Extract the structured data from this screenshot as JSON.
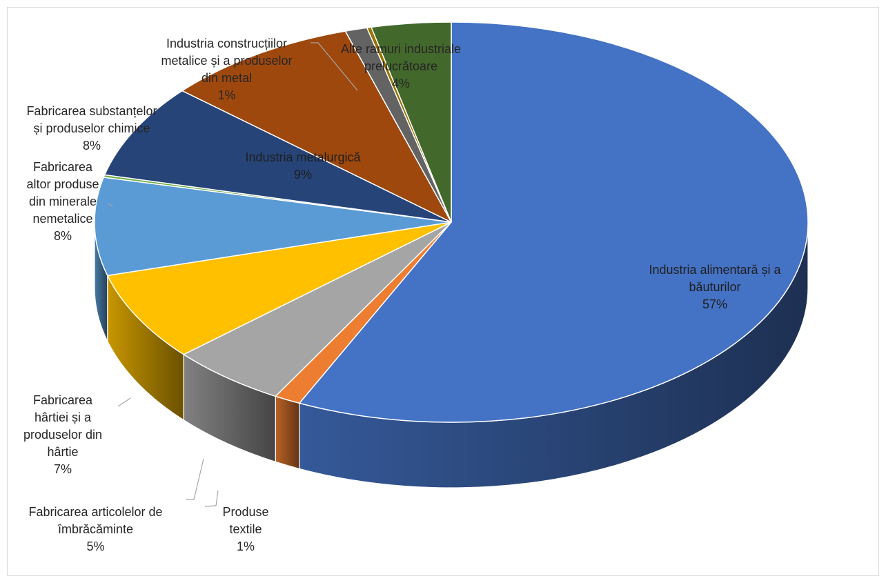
{
  "chart_data": {
    "type": "pie",
    "style": "3d-perspective",
    "legend": "none",
    "title": "",
    "slices": [
      {
        "label": "Industria alimentară și a\nbăuturilor",
        "value": 57,
        "value_label": "57%",
        "color": "#4472C4"
      },
      {
        "label": "Produse\ntextile",
        "value": 1.2,
        "value_label": "1%",
        "color": "#ED7D31"
      },
      {
        "label": "Fabricarea articolelor de\nîmbrăcăminte",
        "value": 5.3,
        "value_label": "5%",
        "color": "#A5A5A5"
      },
      {
        "label": "Fabricarea\nhârtiei și a\nproduselor din\nhârtie",
        "value": 7.2,
        "value_label": "7%",
        "color": "#FFC000"
      },
      {
        "label": "Fabricarea\naltor produse\ndin minerale\nnemetalice",
        "value": 7.9,
        "value_label": "8%",
        "color": "#5B9BD5"
      },
      {
        "label": "",
        "value": 0.2,
        "value_label": "",
        "color": "#70AD47"
      },
      {
        "label": "Fabricarea substanțelor\nși produselor chimice",
        "value": 7.6,
        "value_label": "8%",
        "color": "#264478"
      },
      {
        "label": "Industria metalurgică",
        "value": 8.8,
        "value_label": "9%",
        "color": "#9E480E"
      },
      {
        "label": "Industria construcțiilor\nmetalice și a produselor\ndin metal",
        "value": 1.0,
        "value_label": "1%",
        "color": "#636363"
      },
      {
        "label": "",
        "value": 0.2,
        "value_label": "",
        "color": "#997300"
      },
      {
        "label": "Alte ramuri industriale\nprelucrătoare",
        "value": 3.6,
        "value_label": "4%",
        "color": "#43682B"
      }
    ]
  }
}
